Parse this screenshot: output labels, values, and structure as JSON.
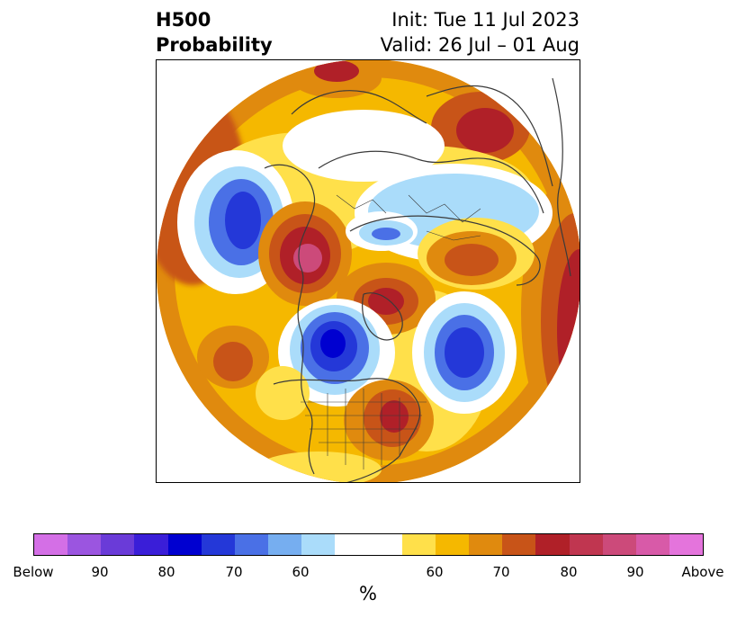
{
  "title": {
    "left_line1": "H500",
    "left_line2": "Probability",
    "right_line1": "Init: Tue 11 Jul 2023",
    "right_line2": "Valid: 26 Jul – 01 Aug"
  },
  "colorbar": {
    "unit": "%",
    "colors": [
      "#d46fe6",
      "#9b55e0",
      "#6a3bd8",
      "#3a1ed8",
      "#0000d0",
      "#2438d8",
      "#4a70e6",
      "#76aef0",
      "#aadcfa",
      "#ffffff",
      "#ffffff",
      "#ffe04a",
      "#f5b800",
      "#e08a0e",
      "#c85418",
      "#b02028",
      "#c03650",
      "#cc4a7a",
      "#d85aa8",
      "#e474dc"
    ],
    "tick_labels": [
      "Below",
      "90",
      "80",
      "70",
      "60",
      "60",
      "70",
      "80",
      "90",
      "Above"
    ]
  },
  "map": {
    "projection": "north-polar-stereographic",
    "region": "Northern Hemisphere"
  }
}
